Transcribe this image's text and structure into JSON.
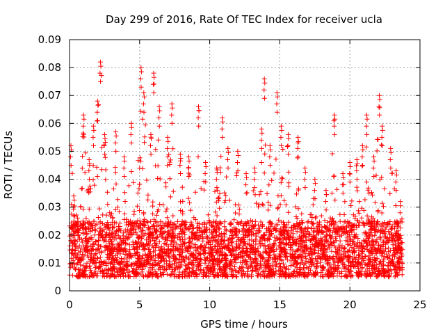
{
  "chart_data": {
    "type": "scatter",
    "title": "Day 299 of 2016, Rate Of TEC Index for receiver ucla",
    "xlabel": "GPS time / hours",
    "ylabel": "ROTI / TECUs",
    "xlim": [
      0,
      25
    ],
    "ylim": [
      0,
      0.09
    ],
    "xticks": [
      0,
      5,
      10,
      15,
      20,
      25
    ],
    "yticks": [
      0,
      0.01,
      0.02,
      0.03,
      0.04,
      0.05,
      0.06,
      0.07,
      0.08,
      0.09
    ],
    "xtick_labels": [
      "0",
      "5",
      "10",
      "15",
      "20",
      "25"
    ],
    "ytick_labels": [
      "0",
      "0.01",
      "0.02",
      "0.03",
      "0.04",
      "0.05",
      "0.06",
      "0.07",
      "0.08",
      "0.09"
    ],
    "grid": true,
    "marker": "+",
    "color": "#ff0000",
    "series": [
      {
        "name": "ROTI",
        "x_range": [
          0,
          23.75
        ],
        "baseline_range": [
          0.005,
          0.025
        ],
        "peaks": [
          {
            "x": 0.1,
            "y": 0.052
          },
          {
            "x": 0.3,
            "y": 0.034
          },
          {
            "x": 1.0,
            "y": 0.063
          },
          {
            "x": 1.4,
            "y": 0.047
          },
          {
            "x": 1.7,
            "y": 0.059
          },
          {
            "x": 2.0,
            "y": 0.068
          },
          {
            "x": 2.2,
            "y": 0.082
          },
          {
            "x": 2.5,
            "y": 0.056
          },
          {
            "x": 3.3,
            "y": 0.057
          },
          {
            "x": 3.9,
            "y": 0.048
          },
          {
            "x": 4.4,
            "y": 0.06
          },
          {
            "x": 5.1,
            "y": 0.08
          },
          {
            "x": 5.3,
            "y": 0.071
          },
          {
            "x": 5.8,
            "y": 0.056
          },
          {
            "x": 6.0,
            "y": 0.078
          },
          {
            "x": 6.4,
            "y": 0.066
          },
          {
            "x": 7.0,
            "y": 0.055
          },
          {
            "x": 7.3,
            "y": 0.067
          },
          {
            "x": 7.9,
            "y": 0.049
          },
          {
            "x": 8.5,
            "y": 0.048
          },
          {
            "x": 9.2,
            "y": 0.066
          },
          {
            "x": 9.7,
            "y": 0.046
          },
          {
            "x": 10.5,
            "y": 0.044
          },
          {
            "x": 10.9,
            "y": 0.062
          },
          {
            "x": 11.3,
            "y": 0.051
          },
          {
            "x": 12.0,
            "y": 0.05
          },
          {
            "x": 12.6,
            "y": 0.042
          },
          {
            "x": 13.2,
            "y": 0.044
          },
          {
            "x": 13.7,
            "y": 0.058
          },
          {
            "x": 13.9,
            "y": 0.076
          },
          {
            "x": 14.3,
            "y": 0.052
          },
          {
            "x": 14.8,
            "y": 0.071
          },
          {
            "x": 15.1,
            "y": 0.059
          },
          {
            "x": 15.6,
            "y": 0.056
          },
          {
            "x": 16.3,
            "y": 0.055
          },
          {
            "x": 16.8,
            "y": 0.044
          },
          {
            "x": 17.5,
            "y": 0.04
          },
          {
            "x": 18.3,
            "y": 0.036
          },
          {
            "x": 18.9,
            "y": 0.063
          },
          {
            "x": 19.5,
            "y": 0.042
          },
          {
            "x": 20.0,
            "y": 0.046
          },
          {
            "x": 20.5,
            "y": 0.047
          },
          {
            "x": 20.9,
            "y": 0.052
          },
          {
            "x": 21.2,
            "y": 0.063
          },
          {
            "x": 21.7,
            "y": 0.048
          },
          {
            "x": 22.1,
            "y": 0.07
          },
          {
            "x": 22.3,
            "y": 0.059
          },
          {
            "x": 22.9,
            "y": 0.051
          },
          {
            "x": 23.3,
            "y": 0.043
          },
          {
            "x": 23.6,
            "y": 0.032
          }
        ]
      }
    ]
  }
}
